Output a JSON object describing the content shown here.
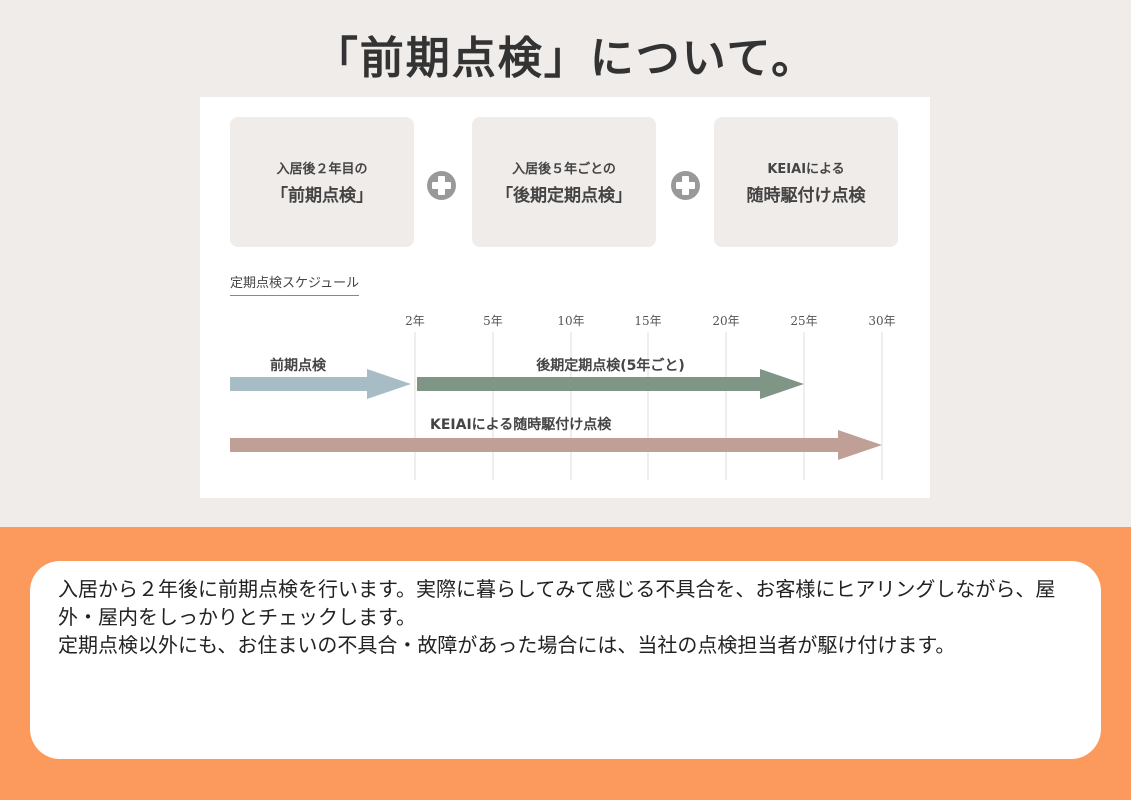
{
  "title": "「前期点検」について。",
  "boxes": [
    {
      "line1": "入居後２年目の",
      "line2": "「前期点検」"
    },
    {
      "line1": "入居後５年ごとの",
      "line2": "「後期定期点検」"
    },
    {
      "line1": "KEIAIによる",
      "line2": "随時駆付け点検"
    }
  ],
  "plus_icon": "plus-circle-icon",
  "chart_data": {
    "type": "timeline",
    "title": "定期点検スケジュール",
    "ticks": [
      "2年",
      "5年",
      "10年",
      "15年",
      "20年",
      "25年",
      "30年"
    ],
    "grid": true,
    "series": [
      {
        "name": "前期点検",
        "start": 0,
        "end": 2,
        "color": "#a7bcc5"
      },
      {
        "name": "後期定期点検(5年ごと)",
        "start": 2,
        "end": 25,
        "color": "#7f9586"
      },
      {
        "name": "KEIAIによる随時駆付け点検",
        "start": 0,
        "end": 30,
        "color": "#c0a096"
      }
    ]
  },
  "description": {
    "paragraph1": "入居から２年後に前期点検を行います。実際に暮らしてみて感じる不具合を、お客様にヒアリングしながら、屋外・屋内をしっかりとチェックします。",
    "paragraph2": "定期点検以外にも、お住まいの不具合・故障があった場合には、当社の点検担当者が駆け付けます。"
  },
  "colors": {
    "background": "#f0ecea",
    "accent": "#fc9a5e"
  }
}
